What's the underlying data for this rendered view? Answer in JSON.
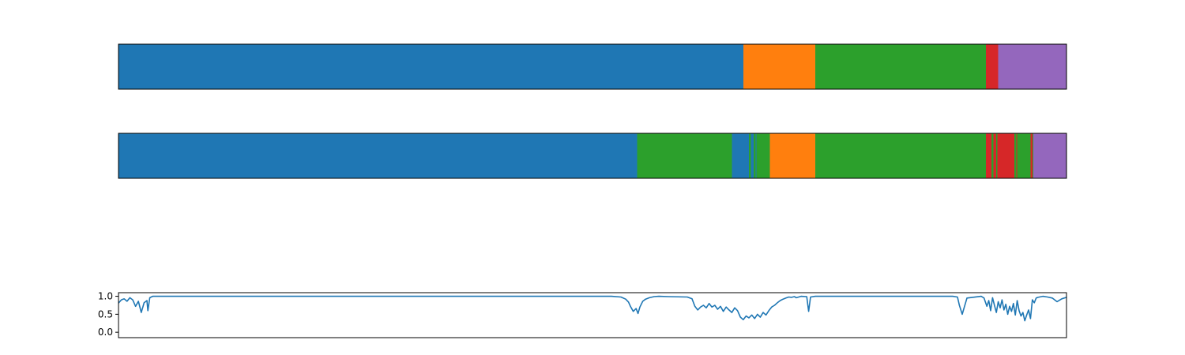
{
  "colors": {
    "blue": "#1f77b4",
    "orange": "#ff7f0e",
    "green": "#2ca02c",
    "red": "#d62728",
    "purple": "#9467bd",
    "frame": "#000000"
  },
  "chart_data": [
    {
      "type": "bar",
      "orientation": "horizontal-segments",
      "xlim": [
        0,
        1000
      ],
      "segments": [
        {
          "start": 0,
          "end": 659,
          "color": "blue"
        },
        {
          "start": 659,
          "end": 735,
          "color": "orange"
        },
        {
          "start": 735,
          "end": 915,
          "color": "green"
        },
        {
          "start": 915,
          "end": 928,
          "color": "red"
        },
        {
          "start": 928,
          "end": 1000,
          "color": "purple"
        }
      ]
    },
    {
      "type": "bar",
      "orientation": "horizontal-segments",
      "xlim": [
        0,
        1000
      ],
      "segments": [
        {
          "start": 0,
          "end": 547,
          "color": "blue"
        },
        {
          "start": 547,
          "end": 647,
          "color": "green"
        },
        {
          "start": 647,
          "end": 665,
          "color": "blue"
        },
        {
          "start": 665,
          "end": 667,
          "color": "green"
        },
        {
          "start": 667,
          "end": 670,
          "color": "blue"
        },
        {
          "start": 670,
          "end": 672,
          "color": "green"
        },
        {
          "start": 672,
          "end": 673,
          "color": "blue"
        },
        {
          "start": 673,
          "end": 687,
          "color": "green"
        },
        {
          "start": 687,
          "end": 735,
          "color": "orange"
        },
        {
          "start": 735,
          "end": 915,
          "color": "green"
        },
        {
          "start": 915,
          "end": 921,
          "color": "red"
        },
        {
          "start": 921,
          "end": 923,
          "color": "green"
        },
        {
          "start": 923,
          "end": 926,
          "color": "red"
        },
        {
          "start": 926,
          "end": 927,
          "color": "green"
        },
        {
          "start": 927,
          "end": 945,
          "color": "red"
        },
        {
          "start": 945,
          "end": 947,
          "color": "green"
        },
        {
          "start": 947,
          "end": 948,
          "color": "red"
        },
        {
          "start": 948,
          "end": 962,
          "color": "green"
        },
        {
          "start": 962,
          "end": 964,
          "color": "red"
        },
        {
          "start": 964,
          "end": 965,
          "color": "green"
        },
        {
          "start": 965,
          "end": 1000,
          "color": "purple"
        }
      ]
    },
    {
      "type": "line",
      "xlim": [
        0,
        1000
      ],
      "ylim": [
        -0.15,
        1.1
      ],
      "yticks": [
        1.0,
        0.5,
        0.0
      ],
      "ytick_labels": [
        "1.0",
        "0.5",
        "0.0"
      ],
      "series": [
        {
          "color": "blue",
          "x": [
            0,
            3,
            6,
            9,
            12,
            15,
            18,
            21,
            24,
            27,
            30,
            31,
            33,
            36,
            40,
            50,
            100,
            200,
            300,
            400,
            460,
            500,
            520,
            530,
            535,
            538,
            540,
            543,
            546,
            548,
            550,
            553,
            556,
            560,
            565,
            570,
            580,
            600,
            605,
            608,
            611,
            614,
            617,
            620,
            623,
            626,
            629,
            632,
            635,
            638,
            641,
            644,
            647,
            650,
            653,
            656,
            659,
            662,
            665,
            668,
            671,
            674,
            677,
            680,
            683,
            686,
            689,
            692,
            695,
            698,
            701,
            704,
            707,
            710,
            713,
            715,
            720,
            726,
            728,
            730,
            735,
            740,
            800,
            850,
            880,
            885,
            887,
            890,
            895,
            910,
            913,
            916,
            918,
            920,
            922,
            924,
            926,
            928,
            930,
            932,
            934,
            936,
            938,
            940,
            942,
            944,
            946,
            948,
            950,
            952,
            954,
            956,
            958,
            960,
            962,
            964,
            966,
            968,
            970,
            975,
            980,
            985,
            990,
            995,
            1000
          ],
          "y": [
            0.81,
            0.9,
            0.93,
            0.86,
            0.96,
            0.9,
            0.72,
            0.86,
            0.55,
            0.82,
            0.88,
            0.6,
            0.96,
            1.0,
            1.0,
            1.0,
            1.0,
            1.0,
            1.0,
            1.0,
            1.0,
            1.0,
            1.0,
            0.98,
            0.92,
            0.84,
            0.72,
            0.58,
            0.66,
            0.52,
            0.7,
            0.86,
            0.92,
            0.96,
            0.99,
            1.0,
            0.99,
            0.98,
            0.93,
            0.72,
            0.62,
            0.7,
            0.75,
            0.68,
            0.8,
            0.7,
            0.75,
            0.64,
            0.72,
            0.58,
            0.7,
            0.62,
            0.55,
            0.68,
            0.6,
            0.42,
            0.35,
            0.45,
            0.4,
            0.48,
            0.38,
            0.5,
            0.42,
            0.55,
            0.48,
            0.6,
            0.7,
            0.75,
            0.82,
            0.88,
            0.92,
            0.95,
            0.98,
            0.97,
            0.99,
            0.96,
            1.0,
            0.99,
            0.58,
            0.98,
            1.0,
            1.0,
            1.0,
            1.0,
            1.0,
            0.98,
            0.75,
            0.5,
            0.95,
            1.0,
            0.95,
            0.72,
            0.88,
            0.6,
            0.96,
            0.75,
            0.55,
            0.85,
            0.68,
            0.9,
            0.62,
            0.78,
            0.5,
            0.72,
            0.58,
            0.8,
            0.48,
            0.88,
            0.6,
            0.45,
            0.55,
            0.32,
            0.48,
            0.62,
            0.38,
            0.9,
            0.82,
            0.95,
            0.97,
            1.0,
            0.98,
            0.95,
            0.85,
            0.93,
            0.97
          ]
        }
      ]
    }
  ]
}
